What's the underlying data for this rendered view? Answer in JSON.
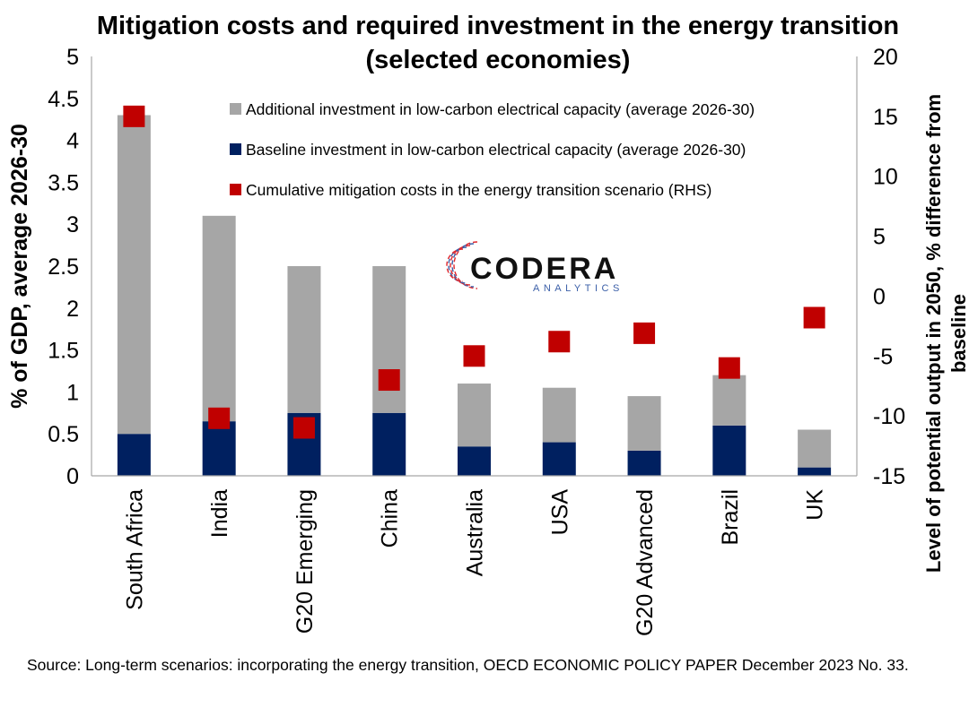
{
  "title": "Mitigation costs and required investment in the energy transition (selected economies)",
  "source": "Source: Long-term scenarios: incorporating the energy transition, OECD ECONOMIC POLICY PAPER December 2023 No. 33.",
  "logo": {
    "name": "CODERA",
    "tagline": "ANALYTICS"
  },
  "colors": {
    "additional": "#a6a6a6",
    "baseline": "#002060",
    "mitigation": "#c00000",
    "logo_red": "#e0282e",
    "logo_blue": "#3b5fa8"
  },
  "chart_data": {
    "type": "bar",
    "stacked": true,
    "categories": [
      "South Africa",
      "India",
      "G20 Emerging",
      "China",
      "Australia",
      "USA",
      "G20 Advanced",
      "Brazil",
      "UK"
    ],
    "ylabel": "% of GDP, average 2026-30",
    "ylabel_right": "Level of potential output in 2050, % difference from baseline",
    "ylim": [
      0,
      5
    ],
    "yticks": [
      "0",
      "0.5",
      "1",
      "1.5",
      "2",
      "2.5",
      "3",
      "3.5",
      "4",
      "4.5",
      "5"
    ],
    "ylim_right": [
      -15,
      20
    ],
    "yticks_right": [
      "-15",
      "-10",
      "-5",
      "0",
      "5",
      "10",
      "15",
      "20"
    ],
    "legend_position": "top-right",
    "series": [
      {
        "name": "Baseline investment in low-carbon electrical capacity (average 2026-30)",
        "kind": "bar",
        "axis": "left",
        "values": [
          0.5,
          0.65,
          0.75,
          0.75,
          0.35,
          0.4,
          0.3,
          0.6,
          0.1
        ]
      },
      {
        "name": "Additional investment in low-carbon electrical capacity (average 2026-30)",
        "kind": "bar",
        "axis": "left",
        "values": [
          3.8,
          2.45,
          1.75,
          1.75,
          0.75,
          0.65,
          0.65,
          0.6,
          0.45
        ]
      },
      {
        "name": "Cumulative mitigation costs in the energy transition scenario (RHS)",
        "kind": "marker",
        "axis": "right",
        "values": [
          15,
          -10.2,
          -11,
          -7,
          -5,
          -3.8,
          -3.1,
          -6,
          -1.8
        ]
      }
    ]
  }
}
